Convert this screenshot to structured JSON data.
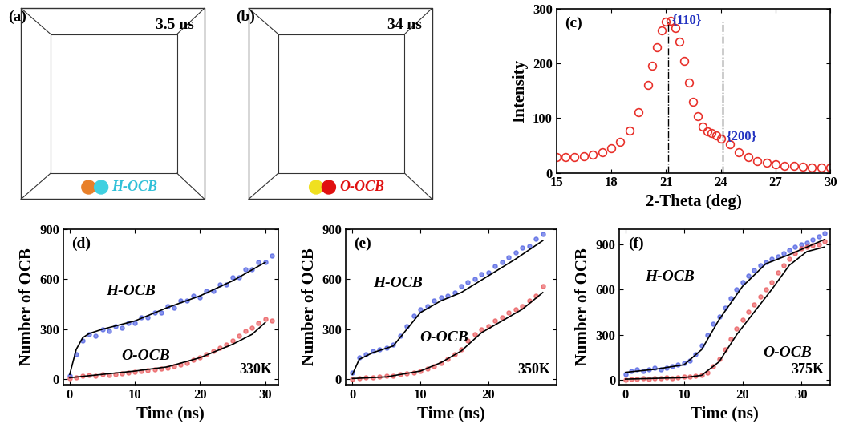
{
  "chart_data": [
    {
      "type": "image",
      "label": "(a)",
      "time": "3.5 ns",
      "legend_text": "H-OCB",
      "color": "#30c0d8",
      "colors": [
        "#e8802a",
        "#40d0e0"
      ]
    },
    {
      "type": "image",
      "label": "(b)",
      "time": "34 ns",
      "legend_text": "O-OCB",
      "color": "#e01010",
      "colors": [
        "#f0e020",
        "#e01010"
      ]
    },
    {
      "type": "scatter",
      "label": "(c)",
      "xlabel": "2-Theta (deg)",
      "ylabel": "Intensity",
      "color": "#e8302a",
      "marker": "o",
      "x": [
        15,
        15.5,
        16,
        16.5,
        17,
        17.5,
        18,
        18.5,
        19,
        19.5,
        20,
        20.25,
        20.5,
        20.75,
        21,
        21.25,
        21.5,
        21.75,
        22,
        22.25,
        22.5,
        22.75,
        23,
        23.25,
        23.5,
        23.75,
        24,
        24.5,
        25,
        25.5,
        26,
        26.5,
        27,
        27.5,
        28,
        28.5,
        29,
        29.5,
        30
      ],
      "values": [
        28,
        28,
        29,
        30,
        33,
        37,
        45,
        57,
        77,
        110,
        160,
        195,
        230,
        260,
        276,
        277,
        265,
        240,
        205,
        165,
        130,
        103,
        85,
        76,
        72,
        68,
        63,
        52,
        38,
        28,
        22,
        18,
        15,
        13,
        12,
        11,
        10,
        10,
        9
      ],
      "xlim": [
        15,
        30
      ],
      "ylim": [
        0,
        300
      ],
      "xticks": [
        15,
        18,
        21,
        24,
        27,
        30
      ],
      "yticks": [
        0,
        100,
        200,
        300
      ],
      "annotations": [
        {
          "text": "{110}",
          "x": 21.1,
          "color": "#2030c0"
        },
        {
          "text": "{200}",
          "x": 24.1,
          "color": "#2030c0"
        }
      ]
    },
    {
      "type": "scatter",
      "label": "(d)",
      "annotation": "330K",
      "xlabel": "Time (ns)",
      "ylabel": "Number of OCB",
      "xlim": [
        -1,
        32
      ],
      "ylim": [
        -30,
        900
      ],
      "xticks": [
        0,
        10,
        20,
        30
      ],
      "yticks": [
        0,
        300,
        600,
        900
      ],
      "series": [
        {
          "name": "H-OCB",
          "color": "#3c50e0",
          "marker": "o",
          "x": [
            0,
            1,
            2,
            3,
            4,
            5,
            6,
            7,
            8,
            9,
            10,
            11,
            12,
            13,
            14,
            15,
            16,
            17,
            18,
            19,
            20,
            21,
            22,
            23,
            24,
            25,
            26,
            27,
            28,
            29,
            30,
            31
          ],
          "values": [
            20,
            150,
            230,
            270,
            260,
            300,
            290,
            320,
            310,
            340,
            340,
            370,
            370,
            400,
            400,
            440,
            430,
            470,
            470,
            500,
            490,
            530,
            530,
            570,
            570,
            610,
            610,
            660,
            660,
            700,
            700,
            740
          ],
          "trend": {
            "type": "line",
            "color": "#000000",
            "x": [
              0,
              1,
              2,
              3,
              5,
              10,
              15,
              20,
              25,
              30
            ],
            "values": [
              30,
              180,
              250,
              275,
              300,
              350,
              430,
              500,
              590,
              700
            ]
          }
        },
        {
          "name": "O-OCB",
          "color": "#e8474a",
          "marker": "o",
          "x": [
            0,
            1,
            2,
            3,
            4,
            5,
            6,
            7,
            8,
            9,
            10,
            11,
            12,
            13,
            14,
            15,
            16,
            17,
            18,
            19,
            20,
            21,
            22,
            23,
            24,
            25,
            26,
            27,
            28,
            29,
            30,
            31
          ],
          "values": [
            5,
            10,
            20,
            25,
            20,
            30,
            25,
            30,
            35,
            40,
            45,
            50,
            55,
            60,
            65,
            70,
            80,
            90,
            100,
            115,
            130,
            150,
            170,
            190,
            210,
            230,
            260,
            290,
            310,
            340,
            360,
            350
          ],
          "trend": {
            "type": "line",
            "color": "#000000",
            "x": [
              0,
              5,
              10,
              15,
              20,
              25,
              28,
              30
            ],
            "values": [
              10,
              30,
              50,
              75,
              130,
              210,
              270,
              340
            ]
          }
        }
      ]
    },
    {
      "type": "scatter",
      "label": "(e)",
      "annotation": "350K",
      "xlabel": "Time (ns)",
      "ylabel": "Number of OCB",
      "xlim": [
        -1,
        30
      ],
      "ylim": [
        -30,
        900
      ],
      "xticks": [
        0,
        10,
        20
      ],
      "yticks": [
        0,
        300,
        600,
        900
      ],
      "series": [
        {
          "name": "H-OCB",
          "color": "#3c50e0",
          "marker": "o",
          "x": [
            0,
            1,
            2,
            3,
            4,
            5,
            6,
            7,
            8,
            9,
            10,
            11,
            12,
            13,
            14,
            15,
            16,
            17,
            18,
            19,
            20,
            21,
            22,
            23,
            24,
            25,
            26,
            27,
            28
          ],
          "values": [
            40,
            130,
            150,
            170,
            180,
            190,
            210,
            260,
            320,
            380,
            420,
            440,
            470,
            490,
            500,
            520,
            560,
            580,
            600,
            630,
            640,
            680,
            700,
            730,
            760,
            790,
            800,
            840,
            870
          ],
          "trend": {
            "type": "line",
            "color": "#000000",
            "x": [
              0,
              1,
              3,
              6,
              8,
              10,
              13,
              16,
              20,
              24,
              28
            ],
            "values": [
              30,
              120,
              160,
              200,
              300,
              400,
              470,
              520,
              620,
              720,
              830
            ]
          }
        },
        {
          "name": "O-OCB",
          "color": "#e8474a",
          "marker": "o",
          "x": [
            0,
            1,
            2,
            3,
            4,
            5,
            6,
            7,
            8,
            9,
            10,
            11,
            12,
            13,
            14,
            15,
            16,
            17,
            18,
            19,
            20,
            21,
            22,
            23,
            24,
            25,
            26,
            27,
            28
          ],
          "values": [
            0,
            5,
            10,
            10,
            15,
            20,
            20,
            30,
            35,
            40,
            50,
            65,
            80,
            100,
            120,
            150,
            180,
            230,
            270,
            300,
            320,
            350,
            370,
            400,
            420,
            440,
            470,
            500,
            560
          ],
          "trend": {
            "type": "line",
            "color": "#000000",
            "x": [
              0,
              5,
              10,
              13,
              16,
              19,
              22,
              25,
              28
            ],
            "values": [
              5,
              15,
              50,
              100,
              170,
              280,
              350,
              420,
              520
            ]
          }
        }
      ]
    },
    {
      "type": "scatter",
      "label": "(f)",
      "annotation": "375K",
      "xlabel": "Time (ns)",
      "ylabel": "Number of OCB",
      "xlim": [
        -1,
        35
      ],
      "ylim": [
        -30,
        1000
      ],
      "xticks": [
        0,
        10,
        20,
        30
      ],
      "yticks": [
        0,
        300,
        600,
        900
      ],
      "series": [
        {
          "name": "H-OCB",
          "color": "#3c50e0",
          "marker": "o",
          "x": [
            0,
            1,
            2,
            3,
            4,
            5,
            6,
            7,
            8,
            9,
            10,
            11,
            12,
            13,
            14,
            15,
            16,
            17,
            18,
            19,
            20,
            21,
            22,
            23,
            24,
            25,
            26,
            27,
            28,
            29,
            30,
            31,
            32,
            33,
            34
          ],
          "values": [
            40,
            60,
            70,
            60,
            70,
            80,
            70,
            80,
            90,
            100,
            110,
            130,
            170,
            230,
            300,
            370,
            420,
            480,
            540,
            600,
            650,
            690,
            730,
            760,
            780,
            800,
            820,
            840,
            860,
            880,
            900,
            910,
            930,
            950,
            970
          ],
          "trend": {
            "type": "line",
            "color": "#000000",
            "x": [
              0,
              5,
              10,
              13,
              16,
              20,
              24,
              28,
              31,
              34
            ],
            "values": [
              50,
              70,
              100,
              200,
              400,
              620,
              770,
              830,
              880,
              930
            ]
          }
        },
        {
          "name": "O-OCB",
          "color": "#e8474a",
          "marker": "o",
          "x": [
            0,
            1,
            2,
            3,
            4,
            5,
            6,
            7,
            8,
            9,
            10,
            11,
            12,
            13,
            14,
            15,
            16,
            17,
            18,
            19,
            20,
            21,
            22,
            23,
            24,
            25,
            26,
            27,
            28,
            29,
            30,
            31,
            32,
            33,
            34
          ],
          "values": [
            0,
            5,
            5,
            10,
            5,
            10,
            10,
            15,
            10,
            15,
            20,
            20,
            25,
            30,
            50,
            90,
            140,
            200,
            270,
            340,
            400,
            450,
            500,
            550,
            600,
            650,
            710,
            760,
            800,
            840,
            870,
            880,
            890,
            900,
            920
          ],
          "trend": {
            "type": "line",
            "color": "#000000",
            "x": [
              0,
              10,
              13,
              16,
              19,
              22,
              25,
              28,
              31,
              34
            ],
            "values": [
              5,
              15,
              30,
              120,
              300,
              450,
              600,
              760,
              850,
              880
            ]
          }
        }
      ]
    }
  ]
}
